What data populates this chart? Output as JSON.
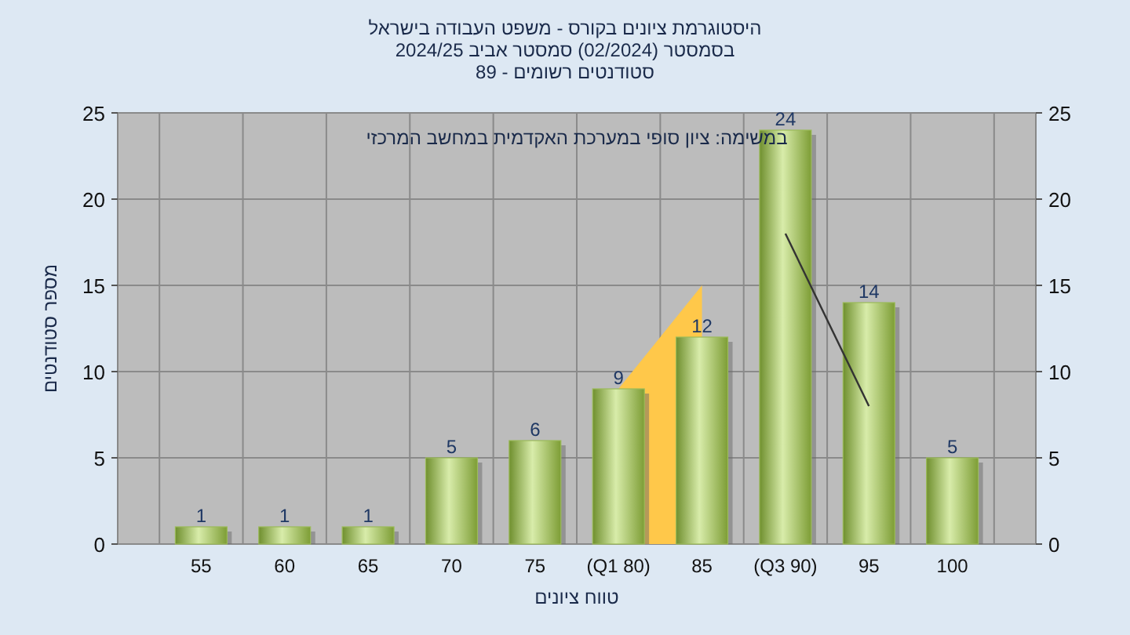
{
  "chart_data": {
    "type": "bar",
    "title": "היסטוגרמת ציונים בקורס - משפט העבודה בישראל",
    "subtitle": "בסמסטר  (02/2024)  סמסטר אביב 2024/25\nסטודנטים רשומים - 89",
    "xlabel": "טווח ציונים",
    "ylabel": "מספר סטודנטים",
    "annotations": [
      "במשימה: ציון סופי במערכת האקדמית במחשב המרכזי"
    ],
    "categories": [
      "55",
      "60",
      "65",
      "70",
      "75",
      "(Q1 80)",
      "85",
      "(Q3 90)",
      "95",
      "100"
    ],
    "series": [
      {
        "type": "area",
        "color": "#ffc84a",
        "values": [
          null,
          null,
          null,
          null,
          null,
          9,
          15,
          null,
          null,
          null
        ]
      },
      {
        "color": "#9bbb59",
        "values": [
          1,
          1,
          1,
          5,
          6,
          9,
          12,
          24,
          14,
          5
        ],
        "data_labels": true
      },
      {
        "type": "line",
        "color": "#333333",
        "values": [
          null,
          null,
          null,
          null,
          null,
          null,
          null,
          18,
          8,
          null
        ]
      }
    ],
    "ylim": [
      0,
      25
    ],
    "yticks": [
      0,
      5,
      10,
      15,
      20,
      25
    ],
    "y2lim": [
      0,
      25
    ],
    "y2ticks": [
      0,
      5,
      10,
      15,
      20,
      25
    ],
    "grid": true
  }
}
